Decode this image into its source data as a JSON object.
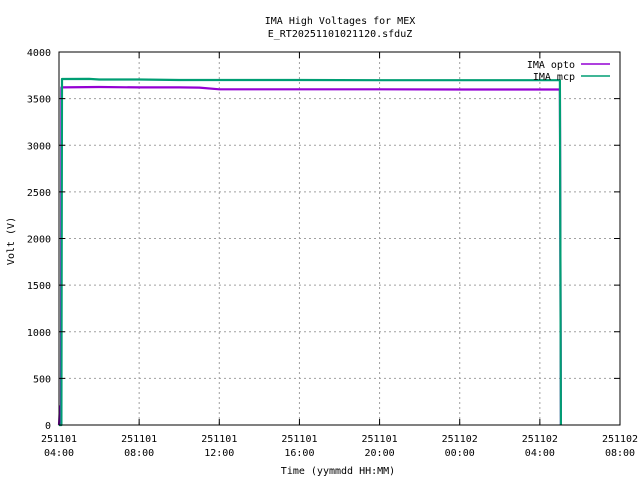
{
  "chart_data": {
    "type": "line",
    "title": "IMA High Voltages for MEX",
    "subtitle": "E_RT20251101021120.sfduZ",
    "xlabel": "Time (yymmdd HH:MM)",
    "ylabel": "Volt (V)",
    "x_unit": "hours",
    "xlim": [
      4,
      32
    ],
    "ylim": [
      0,
      4000
    ],
    "x_ticks": [
      {
        "value": 4,
        "line1": "251101",
        "line2": "04:00"
      },
      {
        "value": 8,
        "line1": "251101",
        "line2": "08:00"
      },
      {
        "value": 12,
        "line1": "251101",
        "line2": "12:00"
      },
      {
        "value": 16,
        "line1": "251101",
        "line2": "16:00"
      },
      {
        "value": 20,
        "line1": "251101",
        "line2": "20:00"
      },
      {
        "value": 24,
        "line1": "251102",
        "line2": "00:00"
      },
      {
        "value": 28,
        "line1": "251102",
        "line2": "04:00"
      },
      {
        "value": 32,
        "line1": "251102",
        "line2": "08:00"
      }
    ],
    "y_ticks": [
      0,
      500,
      1000,
      1500,
      2000,
      2500,
      3000,
      3500,
      4000
    ],
    "grid": true,
    "legend_position": "top-right",
    "series": [
      {
        "name": "IMA opto",
        "color": "#9400d3",
        "points": [
          [
            4.0,
            0
          ],
          [
            4.05,
            200
          ],
          [
            4.1,
            0
          ],
          [
            4.12,
            3620
          ],
          [
            6,
            3625
          ],
          [
            8,
            3620
          ],
          [
            10,
            3620
          ],
          [
            11,
            3618
          ],
          [
            12,
            3600
          ],
          [
            16,
            3600
          ],
          [
            20,
            3600
          ],
          [
            24,
            3598
          ],
          [
            28,
            3598
          ],
          [
            29.0,
            3598
          ],
          [
            29.05,
            0
          ]
        ]
      },
      {
        "name": "IMA mcp",
        "color": "#009e73",
        "points": [
          [
            4.0,
            0
          ],
          [
            4.12,
            0
          ],
          [
            4.15,
            3710
          ],
          [
            5.5,
            3712
          ],
          [
            6,
            3705
          ],
          [
            8,
            3705
          ],
          [
            10,
            3700
          ],
          [
            12,
            3700
          ],
          [
            16,
            3700
          ],
          [
            20,
            3698
          ],
          [
            24,
            3698
          ],
          [
            28,
            3698
          ],
          [
            29.0,
            3698
          ],
          [
            29.05,
            0
          ]
        ]
      }
    ]
  }
}
